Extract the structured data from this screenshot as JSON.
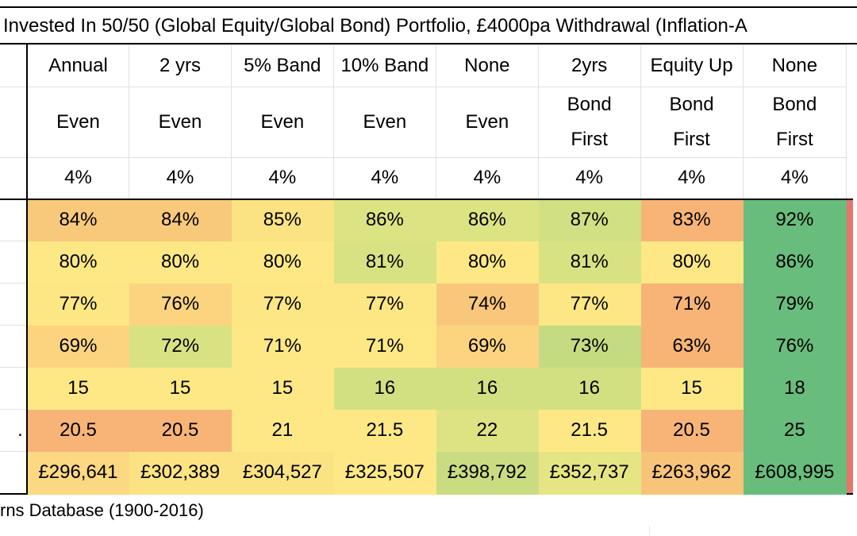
{
  "title": "Invested In 50/50 (Global Equity/Global Bond) Portfolio, £4000pa Withdrawal (Inflation-A",
  "header": {
    "rebalance": [
      "Annual",
      "2 yrs",
      "5% Band",
      "10% Band",
      "None",
      "2yrs",
      "Equity Up",
      "None"
    ],
    "withdraw_line1": [
      "Even",
      "Even",
      "Even",
      "Even",
      "Even",
      "Bond",
      "Bond",
      "Bond"
    ],
    "withdraw_line2": [
      "",
      "",
      "",
      "",
      "",
      "First",
      "First",
      "First"
    ],
    "rate": [
      "4%",
      "4%",
      "4%",
      "4%",
      "4%",
      "4%",
      "4%",
      "4%"
    ]
  },
  "rows": [
    {
      "stub": "",
      "values": [
        "84%",
        "84%",
        "85%",
        "86%",
        "86%",
        "87%",
        "83%",
        "92%"
      ],
      "colors": [
        "#f9c97b",
        "#f9c97b",
        "#fbe383",
        "#dce383",
        "#dce383",
        "#d0e083",
        "#f7b476",
        "#68bd7c"
      ]
    },
    {
      "stub": "",
      "values": [
        "80%",
        "80%",
        "80%",
        "81%",
        "80%",
        "81%",
        "80%",
        "86%"
      ],
      "colors": [
        "#fde885",
        "#fde885",
        "#fde885",
        "#d8e283",
        "#fde885",
        "#d8e283",
        "#fde885",
        "#68bd7c"
      ]
    },
    {
      "stub": "",
      "values": [
        "77%",
        "76%",
        "77%",
        "77%",
        "74%",
        "77%",
        "71%",
        "79%"
      ],
      "colors": [
        "#fde784",
        "#fcd480",
        "#fde784",
        "#fde784",
        "#f9c77b",
        "#fde784",
        "#f7b476",
        "#68bd7c"
      ]
    },
    {
      "stub": "",
      "values": [
        "69%",
        "72%",
        "71%",
        "71%",
        "69%",
        "73%",
        "63%",
        "76%"
      ],
      "colors": [
        "#fcd480",
        "#d9e283",
        "#fde885",
        "#fde885",
        "#fcd480",
        "#c5db81",
        "#f7b476",
        "#68bd7c"
      ]
    },
    {
      "stub": "",
      "values": [
        "15",
        "15",
        "15",
        "16",
        "16",
        "16",
        "15",
        "18"
      ],
      "colors": [
        "#fde885",
        "#fde885",
        "#fde885",
        "#d2e082",
        "#d2e082",
        "#d2e082",
        "#fde885",
        "#68bd7c"
      ]
    },
    {
      "stub": ".",
      "values": [
        "20.5",
        "20.5",
        "21",
        "21.5",
        "22",
        "21.5",
        "20.5",
        "25"
      ],
      "colors": [
        "#f7b476",
        "#f7b476",
        "#fde885",
        "#fde885",
        "#dde383",
        "#fde885",
        "#f7b476",
        "#68bd7c"
      ]
    },
    {
      "stub": "",
      "values": [
        "£296,641",
        "£302,389",
        "£304,527",
        "£325,507",
        "£398,792",
        "£352,737",
        "£263,962",
        "£608,995"
      ],
      "colors": [
        "#fbd881",
        "#fbe383",
        "#fbe383",
        "#fde885",
        "#c9dc81",
        "#e6e583",
        "#f7c479",
        "#68bd7c"
      ]
    }
  ],
  "footnote": "rns Database (1900-2016)"
}
